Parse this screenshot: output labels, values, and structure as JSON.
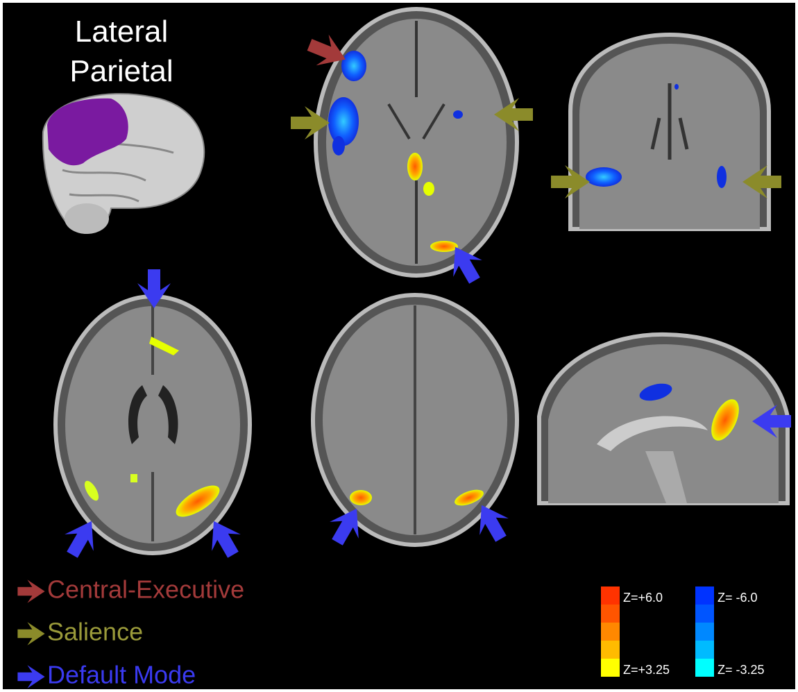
{
  "figure": {
    "title_lines": [
      "Lateral",
      "Parietal"
    ],
    "legend": [
      {
        "label": "Central-Executive"
      },
      {
        "label": "Salience"
      },
      {
        "label": "Default Mode"
      }
    ],
    "colorbars": [
      {
        "top_label": "Z=+6.0",
        "bottom_label": "Z=+3.25"
      },
      {
        "top_label": "Z= -6.0",
        "bottom_label": "Z= -3.25"
      }
    ]
  }
}
